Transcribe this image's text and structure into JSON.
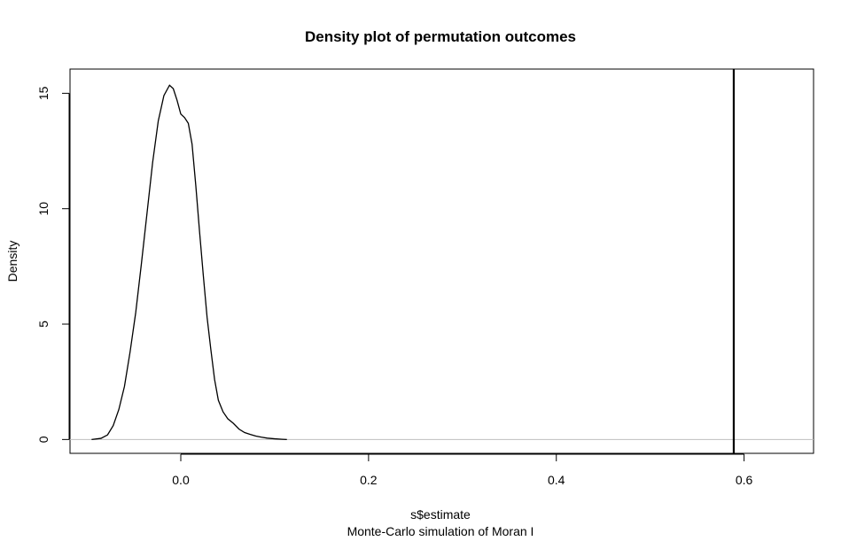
{
  "chart_data": {
    "type": "line",
    "title": "Density plot of permutation outcomes",
    "xlabel": "s$estimate",
    "sub": "Monte-Carlo simulation of Moran I",
    "ylabel": "Density",
    "xlim": [
      -0.118,
      0.674
    ],
    "ylim": [
      -0.6,
      16.05
    ],
    "x_ticks": [
      0.0,
      0.2,
      0.4,
      0.6
    ],
    "x_tick_labels": [
      "0.0",
      "0.2",
      "0.4",
      "0.6"
    ],
    "y_ticks": [
      0,
      5,
      10,
      15
    ],
    "y_tick_labels": [
      "0",
      "5",
      "10",
      "15"
    ],
    "baseline_y": 0,
    "baseline_color": "#bebebe",
    "observed_x": 0.589,
    "line_color": "#000000",
    "grid": false,
    "series": [
      {
        "x": [
          -0.095,
          -0.085,
          -0.078,
          -0.072,
          -0.066,
          -0.06,
          -0.054,
          -0.048,
          -0.042,
          -0.036,
          -0.03,
          -0.024,
          -0.018,
          -0.012,
          -0.008,
          -0.004,
          0.0,
          0.004,
          0.008,
          0.012,
          0.016,
          0.02,
          0.024,
          0.028,
          0.032,
          0.036,
          0.04,
          0.045,
          0.05,
          0.056,
          0.062,
          0.068,
          0.074,
          0.08,
          0.086,
          0.092,
          0.1,
          0.108,
          0.113
        ],
        "y": [
          0.0,
          0.05,
          0.2,
          0.6,
          1.3,
          2.3,
          3.8,
          5.5,
          7.6,
          9.8,
          12.0,
          13.8,
          14.9,
          15.35,
          15.2,
          14.7,
          14.1,
          13.95,
          13.7,
          12.8,
          11.0,
          9.0,
          7.1,
          5.3,
          3.9,
          2.6,
          1.7,
          1.2,
          0.9,
          0.7,
          0.45,
          0.3,
          0.22,
          0.15,
          0.1,
          0.06,
          0.03,
          0.01,
          0.0
        ]
      }
    ]
  }
}
